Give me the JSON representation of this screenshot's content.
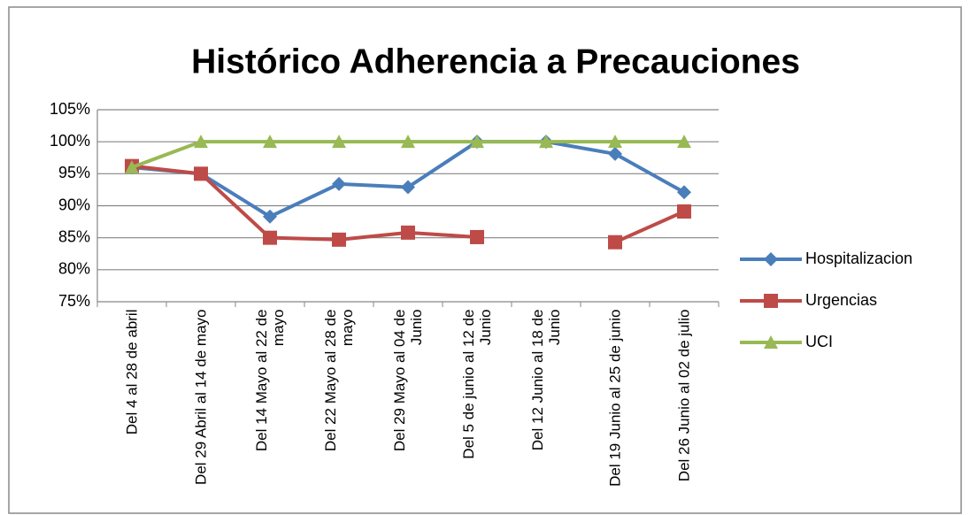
{
  "chart_data": {
    "type": "line",
    "title": "Histórico Adherencia a Precauciones",
    "categories": [
      "Del 4 al  28 de abril",
      "Del 29 Abril al 14 de mayo",
      "Del 14 Mayo al 22 de mayo",
      "Del 22 Mayo al 28 de mayo",
      "Del 29 Mayo al 04 de  Junio",
      "Del 5 de junio al 12 de  Junio",
      "Del 12  Junio al 18 de  Junio",
      "Del 19 Junio al 25 de junio",
      "Del 26 Junio al 02 de julio"
    ],
    "series": [
      {
        "name": "Hospitalizacion",
        "color": "#4a7ebb",
        "marker": "diamond",
        "values": [
          96,
          95,
          88.3,
          93.4,
          92.9,
          100,
          100,
          98.1,
          92.1
        ]
      },
      {
        "name": "Urgencias",
        "color": "#be4b48",
        "marker": "square",
        "values": [
          96.2,
          95,
          85,
          84.7,
          85.8,
          85.1,
          null,
          84.3,
          89.1
        ]
      },
      {
        "name": "UCI",
        "color": "#98b954",
        "marker": "triangle",
        "values": [
          96,
          100,
          100,
          100,
          100,
          100,
          100,
          100,
          100
        ]
      }
    ],
    "ylim": [
      75,
      105
    ],
    "yticks": [
      {
        "value": 75,
        "label": "75%"
      },
      {
        "value": 80,
        "label": "80%"
      },
      {
        "value": 85,
        "label": "85%"
      },
      {
        "value": 90,
        "label": "90%"
      },
      {
        "value": 95,
        "label": "95%"
      },
      {
        "value": 100,
        "label": "100%"
      },
      {
        "value": 105,
        "label": "105%"
      }
    ],
    "grid": true,
    "legend": "right"
  }
}
